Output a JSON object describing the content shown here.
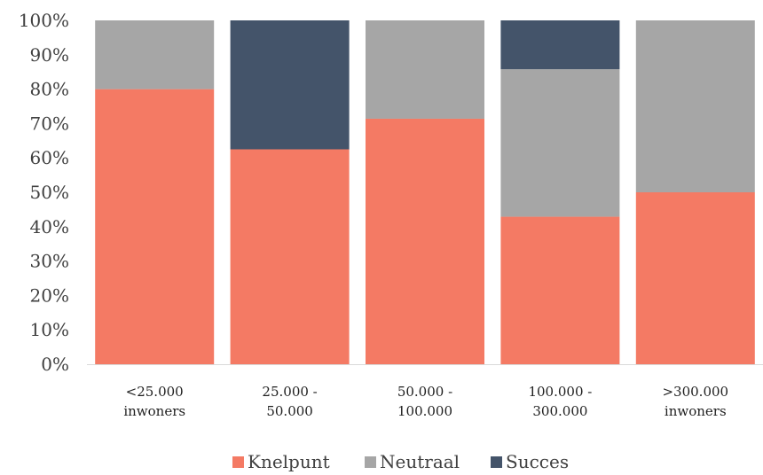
{
  "chart_data": {
    "type": "bar",
    "stacked": true,
    "title": "",
    "xlabel": "",
    "ylabel": "",
    "ylim": [
      0,
      100
    ],
    "grid": false,
    "legend_position": "bottom",
    "y_ticks": [
      "0%",
      "10%",
      "20%",
      "30%",
      "40%",
      "50%",
      "60%",
      "70%",
      "80%",
      "90%",
      "100%"
    ],
    "categories": [
      [
        "<25.000",
        "inwoners"
      ],
      [
        "25.000 -",
        "50.000"
      ],
      [
        "50.000 -",
        "100.000"
      ],
      [
        "100.000 -",
        "300.000"
      ],
      [
        ">300.000",
        "inwoners"
      ]
    ],
    "series": [
      {
        "name": "Knelpunt",
        "color": "#f47a64",
        "values": [
          80,
          62.5,
          71.4,
          42.9,
          50
        ]
      },
      {
        "name": "Neutraal",
        "color": "#a6a6a6",
        "values": [
          20,
          0,
          28.6,
          42.9,
          50
        ]
      },
      {
        "name": "Succes",
        "color": "#44546a",
        "values": [
          0,
          37.5,
          0,
          14.2,
          0
        ]
      }
    ]
  }
}
